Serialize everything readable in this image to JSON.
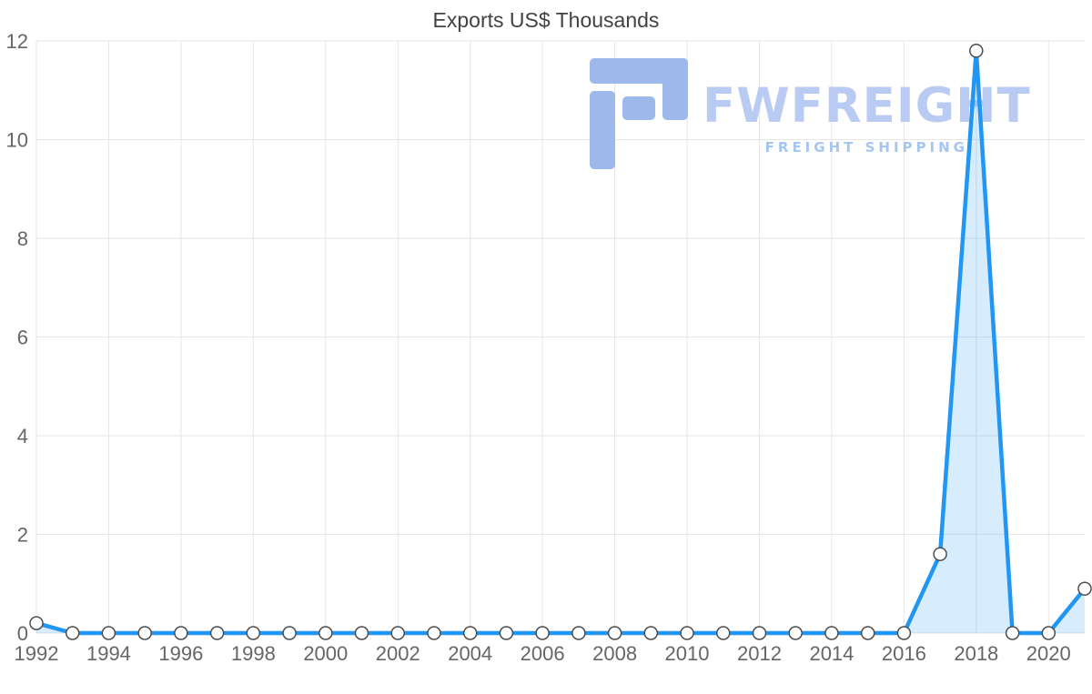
{
  "title": "Exports US$ Thousands",
  "watermark": {
    "brand": "FWFREIGHT",
    "tagline": "FREIGHT SHIPPING",
    "logo_color": "#9db9ec",
    "brand_color": "#b9cbf2",
    "tagline_color": "#a5c6f3"
  },
  "chart_data": {
    "type": "area",
    "title": "Exports US$ Thousands",
    "xlabel": "",
    "ylabel": "",
    "x": [
      1992,
      1993,
      1994,
      1995,
      1996,
      1997,
      1998,
      1999,
      2000,
      2001,
      2002,
      2003,
      2004,
      2005,
      2006,
      2007,
      2008,
      2009,
      2010,
      2011,
      2012,
      2013,
      2014,
      2015,
      2016,
      2017,
      2018,
      2019,
      2020,
      2021
    ],
    "values": [
      0.2,
      0,
      0,
      0,
      0,
      0,
      0,
      0,
      0,
      0,
      0,
      0,
      0,
      0,
      0,
      0,
      0,
      0,
      0,
      0,
      0,
      0,
      0,
      0,
      0,
      1.6,
      11.8,
      0,
      0,
      0.9
    ],
    "xlim": [
      1992,
      2021
    ],
    "ylim": [
      0,
      12
    ],
    "xticks": [
      1992,
      1994,
      1996,
      1998,
      2000,
      2002,
      2004,
      2006,
      2008,
      2010,
      2012,
      2014,
      2016,
      2018,
      2020
    ],
    "yticks": [
      0,
      2,
      4,
      6,
      8,
      10,
      12
    ],
    "grid": true,
    "legend": false,
    "line_color": "#2196f3",
    "area_fill": "rgba(33,150,243,0.18)",
    "marker_fill": "#ffffff",
    "marker_stroke": "#4d4d4d",
    "grid_color": "#e6e6e6",
    "tick_color": "#666666",
    "title_color": "#424242"
  }
}
